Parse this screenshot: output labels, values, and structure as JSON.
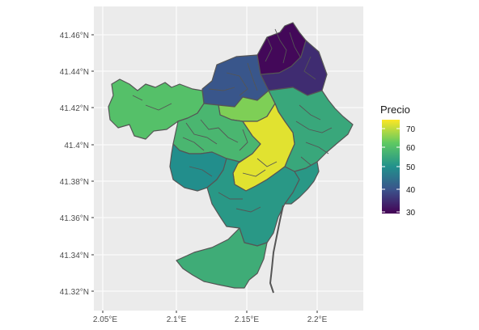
{
  "map": {
    "x_ticks": [
      "2.05°E",
      "2.1°E",
      "2.15°E",
      "2.2°E"
    ],
    "y_ticks": [
      "41.46°N",
      "41.44°N",
      "41.42°N",
      "41.4°N",
      "41.38°N",
      "41.36°N",
      "41.34°N",
      "41.32°N"
    ],
    "legend": {
      "title": "Precio",
      "labels": [
        "70",
        "60",
        "50",
        "40",
        "30"
      ],
      "range": [
        30,
        75
      ],
      "colors": [
        "#440154",
        "#3b528b",
        "#21918c",
        "#5ec962",
        "#fde725"
      ]
    },
    "colors": {
      "panel_background": "#ebebeb",
      "gridline": "#ffffff",
      "boundary": "#555555"
    }
  },
  "chart_data": {
    "type": "choropleth",
    "value_name": "Precio",
    "scale": "viridis",
    "value_range": [
      30,
      75
    ],
    "x_axis": {
      "unit": "longitude",
      "ticks": [
        2.05,
        2.1,
        2.15,
        2.2
      ]
    },
    "y_axis": {
      "unit": "latitude",
      "ticks": [
        41.32,
        41.34,
        41.36,
        41.38,
        41.4,
        41.42,
        41.44,
        41.46
      ]
    },
    "regions": [
      {
        "value": 31
      },
      {
        "value": 36
      },
      {
        "value": 42
      },
      {
        "value": 62
      },
      {
        "value": 66
      },
      {
        "value": 60
      },
      {
        "value": 57
      },
      {
        "value": 73
      },
      {
        "value": 52
      },
      {
        "value": 54
      },
      {
        "value": 58
      }
    ]
  }
}
